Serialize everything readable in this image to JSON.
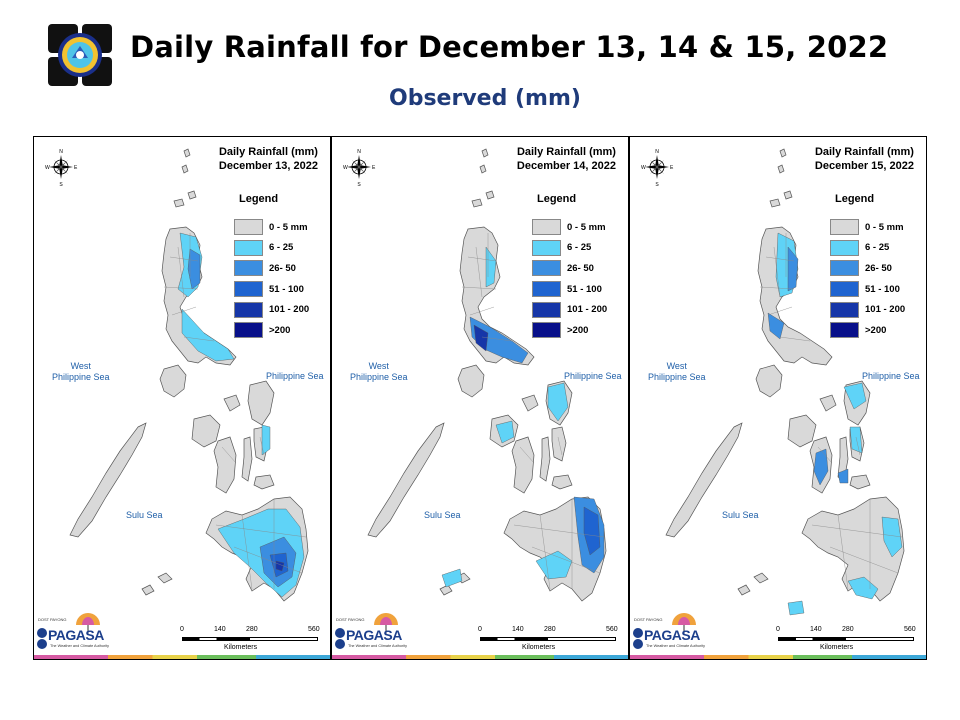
{
  "header": {
    "title": "Daily Rainfall for December 13, 14 & 15, 2022",
    "subtitle": "Observed (mm)"
  },
  "colors": {
    "c0_5": "#d9d9d9",
    "c6_25": "#5fd3f7",
    "c26_50": "#3b8ee0",
    "c51_100": "#1f64d0",
    "c101_200": "#1636a8",
    "c200": "#08108a",
    "outline": "#555555"
  },
  "legend": {
    "title": "Legend",
    "items": [
      {
        "label": "0 - 5 mm",
        "color": "#d9d9d9"
      },
      {
        "label": "6 - 25",
        "color": "#5fd3f7"
      },
      {
        "label": "26- 50",
        "color": "#3b8ee0"
      },
      {
        "label": "51 - 100",
        "color": "#1f64d0"
      },
      {
        "label": "101 - 200",
        "color": "#1636a8"
      },
      {
        "label": ">200",
        "color": "#08108a"
      }
    ]
  },
  "map_labels": {
    "west_sea_line1": "West",
    "west_sea_line2": "Philippine Sea",
    "philippine_sea": "Philippine Sea",
    "sulu_sea": "Sulu Sea",
    "kilometers": "Kilometers",
    "scale_ticks": [
      "0",
      "140",
      "280",
      "560"
    ],
    "compass": {
      "n": "N",
      "s": "S",
      "e": "E",
      "w": "W"
    }
  },
  "branding": {
    "dost": "DOST",
    "payong": "PAYONG",
    "pagasa": "PAGASA",
    "tagline": "The Weather and Climate Authority"
  },
  "panels": [
    {
      "title_line1": "Daily Rainfall (mm)",
      "title_line2": "December 13, 2022",
      "rain_pattern": "dec13"
    },
    {
      "title_line1": "Daily Rainfall (mm)",
      "title_line2": "December 14, 2022",
      "rain_pattern": "dec14"
    },
    {
      "title_line1": "Daily Rainfall (mm)",
      "title_line2": "December 15, 2022",
      "rain_pattern": "dec15"
    }
  ]
}
